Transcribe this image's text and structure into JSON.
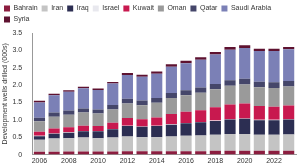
{
  "chart_data": {
    "type": "bar",
    "stacked": true,
    "grid": false,
    "legend": "top",
    "y_label": "Development wells drilled (000s)",
    "categories": [
      "2006",
      null,
      "2008",
      null,
      "2010",
      null,
      "2012",
      null,
      "2014",
      null,
      "2016",
      null,
      "2018",
      null,
      "2020",
      null,
      "2022",
      null
    ],
    "ylim": [
      0,
      3.5
    ],
    "yticks": [
      0,
      {
        "value": 0.5,
        "label": "0.5"
      },
      {
        "value": 1,
        "label": "1.0"
      },
      {
        "value": 1.5,
        "label": "1.5"
      },
      {
        "value": 2,
        "label": "2.0"
      },
      {
        "value": 2.5,
        "label": "2.5"
      },
      {
        "value": 3,
        "label": "3.0"
      },
      {
        "value": 3.5,
        "label": "3.5"
      }
    ],
    "series": [
      {
        "name": "Bahrain",
        "color": "#8c1d3f",
        "values": [
          0.08,
          0.08,
          0.09,
          0.09,
          0.09,
          0.09,
          0.1,
          0.1,
          0.1,
          0.1,
          0.1,
          0.1,
          0.11,
          0.11,
          0.11,
          0.11,
          0.11,
          0.11
        ]
      },
      {
        "name": "Iran",
        "color": "#c4c4c4",
        "values": [
          0.35,
          0.38,
          0.38,
          0.4,
          0.38,
          0.4,
          0.42,
          0.4,
          0.4,
          0.42,
          0.44,
          0.45,
          0.46,
          0.48,
          0.48,
          0.46,
          0.46,
          0.47
        ]
      },
      {
        "name": "Iraq",
        "color": "#2c2e52",
        "values": [
          0.1,
          0.14,
          0.16,
          0.18,
          0.2,
          0.24,
          0.3,
          0.3,
          0.32,
          0.34,
          0.36,
          0.38,
          0.4,
          0.42,
          0.44,
          0.42,
          0.42,
          0.43
        ]
      },
      {
        "name": "Israel",
        "color": "#e8e8ee",
        "values": [
          0.01,
          0.01,
          0.01,
          0.01,
          0.01,
          0.01,
          0.01,
          0.01,
          0.01,
          0.01,
          0.01,
          0.01,
          0.01,
          0.01,
          0.01,
          0.01,
          0.01,
          0.01
        ]
      },
      {
        "name": "Kuwait",
        "color": "#c8194f",
        "values": [
          0.12,
          0.14,
          0.15,
          0.15,
          0.14,
          0.18,
          0.22,
          0.21,
          0.24,
          0.3,
          0.32,
          0.34,
          0.38,
          0.42,
          0.43,
          0.4,
          0.38,
          0.39
        ]
      },
      {
        "name": "Oman",
        "color": "#9a9a9a",
        "values": [
          0.3,
          0.34,
          0.36,
          0.38,
          0.36,
          0.38,
          0.42,
          0.4,
          0.42,
          0.46,
          0.48,
          0.5,
          0.52,
          0.54,
          0.55,
          0.54,
          0.54,
          0.55
        ]
      },
      {
        "name": "Qatar",
        "color": "#45466a",
        "values": [
          0.1,
          0.12,
          0.12,
          0.12,
          0.12,
          0.13,
          0.14,
          0.14,
          0.14,
          0.14,
          0.14,
          0.15,
          0.15,
          0.16,
          0.16,
          0.16,
          0.16,
          0.16
        ]
      },
      {
        "name": "Saudi Arabia",
        "color": "#7b80b6",
        "values": [
          0.44,
          0.5,
          0.54,
          0.58,
          0.56,
          0.62,
          0.68,
          0.68,
          0.7,
          0.76,
          0.78,
          0.8,
          0.85,
          0.88,
          0.89,
          0.88,
          0.9,
          0.91
        ]
      },
      {
        "name": "Syria",
        "color": "#5e1230",
        "values": [
          0.05,
          0.04,
          0.04,
          0.04,
          0.04,
          0.04,
          0.06,
          0.06,
          0.06,
          0.07,
          0.07,
          0.07,
          0.07,
          0.08,
          0.08,
          0.07,
          0.07,
          0.07
        ]
      }
    ]
  }
}
